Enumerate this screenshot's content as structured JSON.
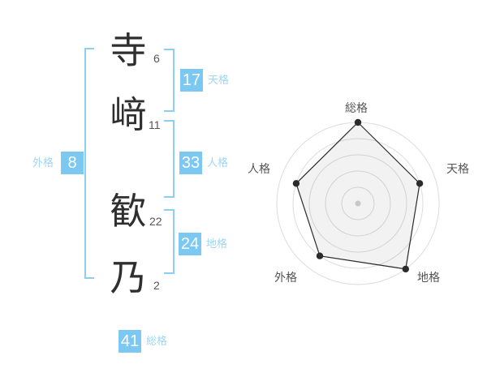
{
  "name_display": {
    "characters": [
      {
        "char": "寺",
        "strokes": "6"
      },
      {
        "char": "﨑",
        "strokes": "11"
      },
      {
        "char": "歓",
        "strokes": "22"
      },
      {
        "char": "乃",
        "strokes": "2"
      }
    ]
  },
  "kaku": {
    "tenkaku": {
      "label": "天格",
      "value": "17"
    },
    "jinkaku": {
      "label": "人格",
      "value": "33"
    },
    "chikaku": {
      "label": "地格",
      "value": "24"
    },
    "gaikaku": {
      "label": "外格",
      "value": "8"
    },
    "soukaku": {
      "label": "総格",
      "value": "41"
    }
  },
  "colors": {
    "accent_blue": "#7BC8F2",
    "label_blue": "#9ED6F6",
    "bracket_blue": "#8DCFF2",
    "kanji_dark": "#2f2f2f",
    "stroke_gray": "#555555",
    "ring_gray": "#dddddd"
  },
  "chart_data": {
    "type": "radar",
    "axes": [
      "総格",
      "天格",
      "地格",
      "外格",
      "人格"
    ],
    "values": [
      5,
      4,
      5,
      4,
      4
    ],
    "max": 5,
    "rings": 5,
    "grid": "circular-rings-only",
    "legend": "none",
    "point_color": "#2b2b2b",
    "center_dot_color": "#c8c8c8"
  }
}
